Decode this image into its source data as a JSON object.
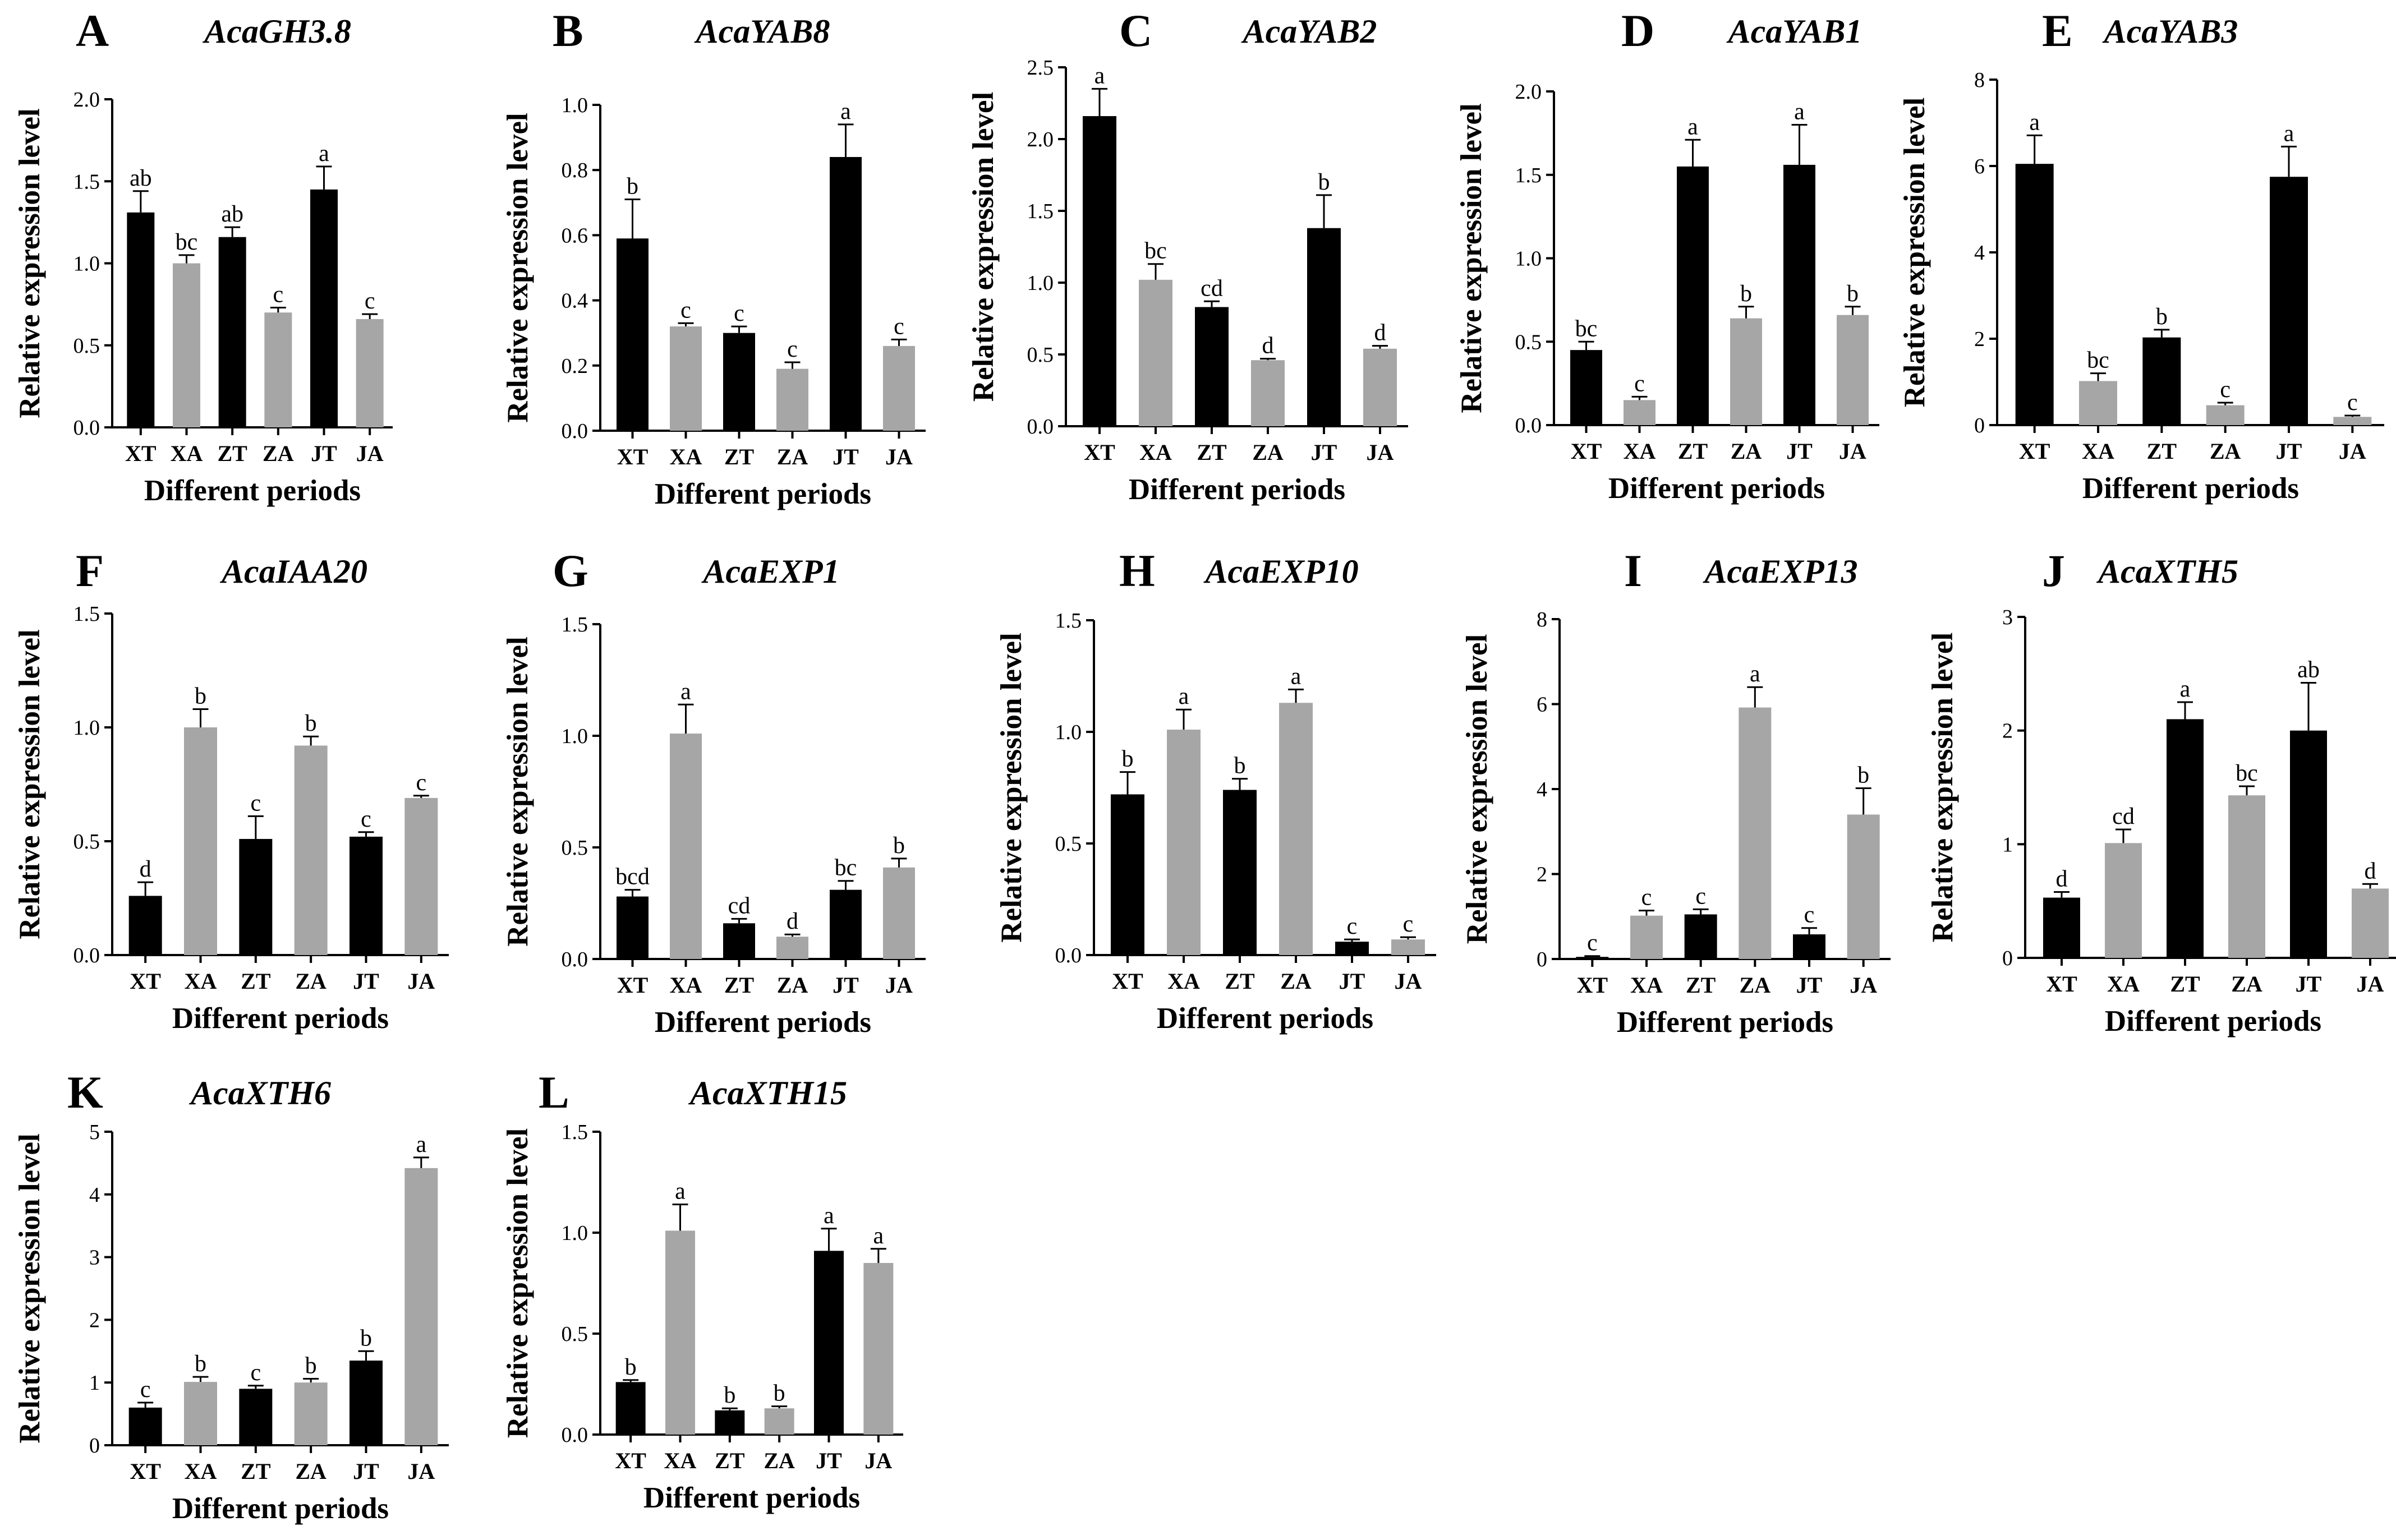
{
  "figure": {
    "x_axis_title": "Different periods",
    "y_axis_title": "Relative expression level",
    "categories": [
      "XT",
      "XA",
      "ZT",
      "ZA",
      "JT",
      "JA"
    ],
    "colors": {
      "T": "#000000",
      "A": "#a6a6a6"
    }
  },
  "chart_data": [
    {
      "type": "bar",
      "letter": "A",
      "title": "AcaGH3.8",
      "categories": [
        "XT",
        "XA",
        "ZT",
        "ZA",
        "JT",
        "JA"
      ],
      "values": [
        1.31,
        1.0,
        1.16,
        0.7,
        1.45,
        0.66
      ],
      "errors": [
        0.13,
        0.05,
        0.06,
        0.03,
        0.14,
        0.03
      ],
      "labels": [
        "ab",
        "bc",
        "ab",
        "c",
        "a",
        "c"
      ],
      "ylim": [
        0,
        2.0
      ],
      "yticks": [
        "0.0",
        "0.5",
        "1.0",
        "1.5",
        "2.0"
      ],
      "xlabel": "Different periods",
      "ylabel": "Relative expression level"
    },
    {
      "type": "bar",
      "letter": "B",
      "title": "AcaYAB8",
      "categories": [
        "XT",
        "XA",
        "ZT",
        "ZA",
        "JT",
        "JA"
      ],
      "values": [
        0.59,
        0.32,
        0.3,
        0.19,
        0.84,
        0.26
      ],
      "errors": [
        0.12,
        0.01,
        0.02,
        0.02,
        0.1,
        0.02
      ],
      "labels": [
        "b",
        "c",
        "c",
        "c",
        "a",
        "c"
      ],
      "ylim": [
        0,
        1.0
      ],
      "yticks": [
        "0.0",
        "0.2",
        "0.4",
        "0.6",
        "0.8",
        "1.0"
      ],
      "xlabel": "Different periods",
      "ylabel": "Relative expression level"
    },
    {
      "type": "bar",
      "letter": "C",
      "title": "AcaYAB2",
      "categories": [
        "XT",
        "XA",
        "ZT",
        "ZA",
        "JT",
        "JA"
      ],
      "values": [
        2.16,
        1.02,
        0.83,
        0.46,
        1.38,
        0.54
      ],
      "errors": [
        0.19,
        0.11,
        0.04,
        0.01,
        0.23,
        0.02
      ],
      "labels": [
        "a",
        "bc",
        "cd",
        "d",
        "b",
        "d"
      ],
      "ylim": [
        0,
        2.5
      ],
      "yticks": [
        "0.0",
        "0.5",
        "1.0",
        "1.5",
        "2.0",
        "2.5"
      ],
      "xlabel": "Different periods",
      "ylabel": "Relative expression level"
    },
    {
      "type": "bar",
      "letter": "D",
      "title": "AcaYAB1",
      "categories": [
        "XT",
        "XA",
        "ZT",
        "ZA",
        "JT",
        "JA"
      ],
      "values": [
        0.45,
        0.15,
        1.55,
        0.64,
        1.56,
        0.66
      ],
      "errors": [
        0.05,
        0.02,
        0.16,
        0.07,
        0.24,
        0.05
      ],
      "labels": [
        "bc",
        "c",
        "a",
        "b",
        "a",
        "b"
      ],
      "ylim": [
        0,
        2.0
      ],
      "yticks": [
        "0.0",
        "0.5",
        "1.0",
        "1.5",
        "2.0"
      ],
      "xlabel": "Different periods",
      "ylabel": "Relative expression level"
    },
    {
      "type": "bar",
      "letter": "E",
      "title": "AcaYAB3",
      "categories": [
        "XT",
        "XA",
        "ZT",
        "ZA",
        "JT",
        "JA"
      ],
      "values": [
        6.05,
        1.02,
        2.03,
        0.46,
        5.75,
        0.19
      ],
      "errors": [
        0.66,
        0.18,
        0.18,
        0.06,
        0.7,
        0.03
      ],
      "labels": [
        "a",
        "bc",
        "b",
        "c",
        "a",
        "c"
      ],
      "ylim": [
        0,
        8
      ],
      "yticks": [
        "0",
        "2",
        "4",
        "6",
        "8"
      ],
      "xlabel": "Different periods",
      "ylabel": "Relative expression level"
    },
    {
      "type": "bar",
      "letter": "F",
      "title": "AcaIAA20",
      "categories": [
        "XT",
        "XA",
        "ZT",
        "ZA",
        "JT",
        "JA"
      ],
      "values": [
        0.26,
        1.0,
        0.51,
        0.92,
        0.52,
        0.69
      ],
      "errors": [
        0.06,
        0.08,
        0.1,
        0.04,
        0.02,
        0.01
      ],
      "labels": [
        "d",
        "b",
        "c",
        "b",
        "c",
        "c"
      ],
      "ylim": [
        0,
        1.5
      ],
      "yticks": [
        "0.0",
        "0.5",
        "1.0",
        "1.5"
      ],
      "xlabel": "Different periods",
      "ylabel": "Relative expression level"
    },
    {
      "type": "bar",
      "letter": "G",
      "title": "AcaEXP1",
      "categories": [
        "XT",
        "XA",
        "ZT",
        "ZA",
        "JT",
        "JA"
      ],
      "values": [
        0.28,
        1.01,
        0.16,
        0.1,
        0.31,
        0.41
      ],
      "errors": [
        0.03,
        0.13,
        0.02,
        0.01,
        0.04,
        0.04
      ],
      "labels": [
        "bcd",
        "a",
        "cd",
        "d",
        "bc",
        "b"
      ],
      "ylim": [
        0,
        1.5
      ],
      "yticks": [
        "0.0",
        "0.5",
        "1.0",
        "1.5"
      ],
      "xlabel": "Different periods",
      "ylabel": "Relative expression level"
    },
    {
      "type": "bar",
      "letter": "H",
      "title": "AcaEXP10",
      "categories": [
        "XT",
        "XA",
        "ZT",
        "ZA",
        "JT",
        "JA"
      ],
      "values": [
        0.72,
        1.01,
        0.74,
        1.13,
        0.06,
        0.07
      ],
      "errors": [
        0.1,
        0.09,
        0.05,
        0.06,
        0.01,
        0.01
      ],
      "labels": [
        "b",
        "a",
        "b",
        "a",
        "c",
        "c"
      ],
      "ylim": [
        0,
        1.5
      ],
      "yticks": [
        "0.0",
        "0.5",
        "1.0",
        "1.5"
      ],
      "xlabel": "Different periods",
      "ylabel": "Relative expression level"
    },
    {
      "type": "bar",
      "letter": "I",
      "title": "AcaEXP13",
      "categories": [
        "XT",
        "XA",
        "ZT",
        "ZA",
        "JT",
        "JA"
      ],
      "values": [
        0.05,
        1.02,
        1.05,
        5.92,
        0.58,
        3.4
      ],
      "errors": [
        0.02,
        0.12,
        0.12,
        0.48,
        0.15,
        0.62
      ],
      "labels": [
        "c",
        "c",
        "c",
        "a",
        "c",
        "b"
      ],
      "ylim": [
        0,
        8
      ],
      "yticks": [
        "0",
        "2",
        "4",
        "6",
        "8"
      ],
      "xlabel": "Different periods",
      "ylabel": "Relative expression level"
    },
    {
      "type": "bar",
      "letter": "J",
      "title": "AcaXTH5",
      "categories": [
        "XT",
        "XA",
        "ZT",
        "ZA",
        "JT",
        "JA"
      ],
      "values": [
        0.53,
        1.01,
        2.1,
        1.43,
        2.0,
        0.61
      ],
      "errors": [
        0.05,
        0.12,
        0.15,
        0.08,
        0.42,
        0.04
      ],
      "labels": [
        "d",
        "cd",
        "a",
        "bc",
        "ab",
        "d"
      ],
      "ylim": [
        0,
        3
      ],
      "yticks": [
        "0",
        "1",
        "2",
        "3"
      ],
      "xlabel": "Different periods",
      "ylabel": "Relative expression level"
    },
    {
      "type": "bar",
      "letter": "K",
      "title": "AcaXTH6",
      "categories": [
        "XT",
        "XA",
        "ZT",
        "ZA",
        "JT",
        "JA"
      ],
      "values": [
        0.6,
        1.01,
        0.9,
        1.0,
        1.35,
        4.42
      ],
      "errors": [
        0.08,
        0.08,
        0.05,
        0.06,
        0.15,
        0.17
      ],
      "labels": [
        "c",
        "b",
        "c",
        "b",
        "b",
        "a"
      ],
      "ylim": [
        0,
        5
      ],
      "yticks": [
        "0",
        "1",
        "2",
        "3",
        "4",
        "5"
      ],
      "xlabel": "Different periods",
      "ylabel": "Relative expression level"
    },
    {
      "type": "bar",
      "letter": "L",
      "title": "AcaXTH15",
      "categories": [
        "XT",
        "XA",
        "ZT",
        "ZA",
        "JT",
        "JA"
      ],
      "values": [
        0.26,
        1.01,
        0.12,
        0.13,
        0.91,
        0.85
      ],
      "errors": [
        0.01,
        0.13,
        0.01,
        0.01,
        0.11,
        0.07
      ],
      "labels": [
        "b",
        "a",
        "b",
        "b",
        "a",
        "a"
      ],
      "ylim": [
        0,
        1.5
      ],
      "yticks": [
        "0.0",
        "0.5",
        "1.0",
        "1.5"
      ],
      "xlabel": "Different periods",
      "ylabel": "Relative expression level"
    }
  ]
}
